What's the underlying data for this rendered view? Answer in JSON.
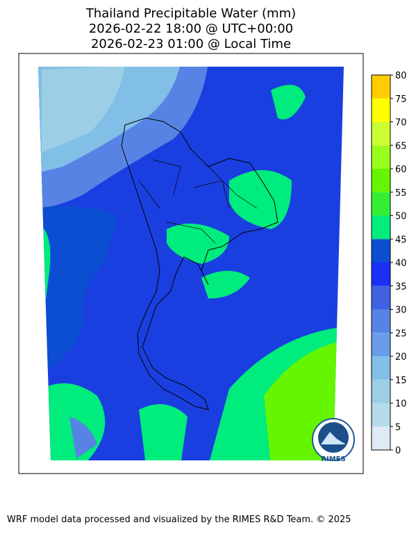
{
  "title_lines": [
    "Thailand Precipitable Water (mm)",
    "2026-02-22 18:00 @ UTC+00:00",
    "2026-02-23 01:00 @ Local Time"
  ],
  "colorbar": {
    "levels": [
      0,
      5,
      10,
      15,
      20,
      25,
      30,
      35,
      40,
      45,
      50,
      55,
      60,
      65,
      70,
      75,
      80
    ],
    "colors": [
      "#deebf7",
      "#b5dbe8",
      "#9ccfe6",
      "#82bfe6",
      "#6a9cea",
      "#5784e4",
      "#3f63e0",
      "#1a2ff5",
      "#0c4ed2",
      "#00ec7c",
      "#33ee33",
      "#66f500",
      "#99ff1a",
      "#ccff33",
      "#ffff00",
      "#ffcc00"
    ]
  },
  "logo": "RIMES",
  "footer": "WRF model data processed and visualized by the RIMES R&D Team. © 2025"
}
